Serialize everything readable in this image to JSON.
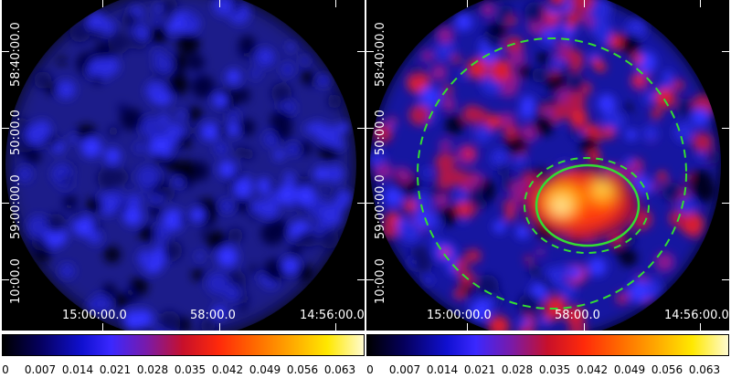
{
  "panels": [
    {
      "id": "left",
      "y_labels": [
        "58:40:00.0",
        "50:00.0",
        "59:00:00.0",
        "10:00.0"
      ],
      "x_labels": [
        "15:00:00.0",
        "58:00.0",
        "14:56:00.0"
      ]
    },
    {
      "id": "right",
      "y_labels": [
        "58:40:00.0",
        "50:00.0",
        "59:00:00.0",
        "10:00.0"
      ],
      "x_labels": [
        "15:00:00.0",
        "58:00.0",
        "14:56:00.0"
      ]
    }
  ],
  "colorbar": {
    "ticks": [
      "0",
      "0.007",
      "0.014",
      "0.021",
      "0.028",
      "0.035",
      "0.042",
      "0.049",
      "0.056",
      "0.063"
    ]
  },
  "colors": {
    "background": "#000000",
    "region_circle": "#33dd33",
    "colormap": [
      "#000000",
      "#05005a",
      "#1010d0",
      "#3a28ff",
      "#7a1aa8",
      "#c8102a",
      "#ff2a0a",
      "#ff6a00",
      "#ffa800",
      "#ffe800",
      "#fffbd0"
    ]
  }
}
